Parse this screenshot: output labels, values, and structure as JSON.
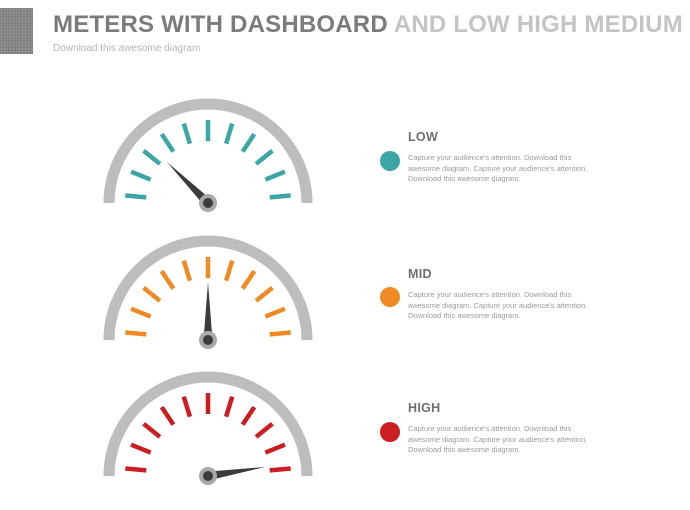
{
  "header": {
    "title_dark": "METERS WITH DASHBOARD",
    "title_light": "AND LOW HIGH MEDIUM",
    "subtitle": "Download this awesome diagram"
  },
  "colors": {
    "low": "#3aa6a5",
    "mid": "#f08a22",
    "high": "#cc1d22",
    "arc": "#bdbdbd",
    "needle": "#3c3c3c",
    "hub": "#a8a8a8"
  },
  "meters": [
    {
      "label": "LOW",
      "color_key": "low",
      "needle_level": 0.25,
      "description": "Capture your audience's attention. Download this awesome diagram. Capture your audience's attention. Download this awesome diagram."
    },
    {
      "label": "MID",
      "color_key": "mid",
      "needle_level": 0.5,
      "description": "Capture your audience's attention. Download this awesome diagram. Capture your audience's attention. Download this awesome diagram."
    },
    {
      "label": "HIGH",
      "color_key": "high",
      "needle_level": 0.95,
      "description": "Capture your audience's attention. Download this awesome diagram. Capture your audience's attention. Download this awesome diagram."
    }
  ]
}
